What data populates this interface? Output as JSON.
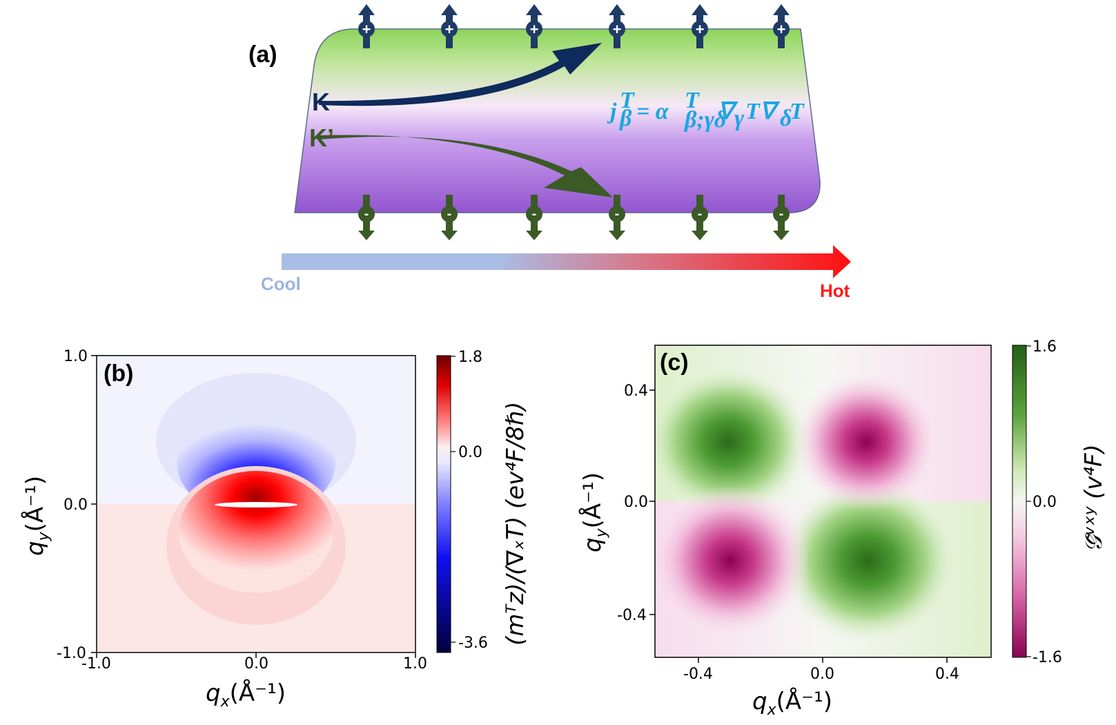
{
  "figure": {
    "panel_a": {
      "label": "(a)",
      "valley_k": "K",
      "valley_k_prime": "K’",
      "formula": "j",
      "formula_sub": "β",
      "formula_sup": "T",
      "formula_rhs": "= α",
      "formula_rhs_sub": "β;γδ",
      "formula_rhs_sup": "T",
      "formula_tail": "∇",
      "formula_g": "γ",
      "formula_T": "T∇",
      "formula_d": "δ",
      "formula_T2": "T",
      "cool_label": "Cool",
      "hot_label": "Hot",
      "charges_top": [
        "+",
        "+",
        "+",
        "+",
        "+",
        "+"
      ],
      "charges_bottom": [
        "-",
        "-",
        "-",
        "-",
        "-",
        "-"
      ],
      "colors": {
        "cool": "#9db4e0",
        "hot": "#ff1a1a",
        "k_arrow": "#0f2a5c",
        "kp_arrow": "#3b5a26",
        "formula": "#1aa7e0"
      }
    },
    "panel_b": {
      "label": "(b)",
      "x_ticks": [
        "-1.0",
        "0.0",
        "1.0"
      ],
      "y_ticks": [
        "1.0",
        "0.0",
        "-1.0"
      ],
      "x_title": "q",
      "x_title_sub": "x",
      "x_title_unit": "(Å⁻¹)",
      "y_title": "q",
      "y_title_sub": "y",
      "y_title_unit": "(Å⁻¹)",
      "colorbar_ticks": [
        "1.8",
        "0.0",
        "-3.6"
      ],
      "colorbar_title": "(m",
      "colorbar_title_full": "(mᵀz)/(∇ₓT)  (ev⁴F/8ℏ)",
      "colorscale": {
        "max_color": "#7a0000",
        "mid_color": "#f5f5ff",
        "min_color": "#00004d"
      }
    },
    "panel_c": {
      "label": "(c)",
      "x_ticks": [
        "-0.4",
        "0.0",
        "0.4"
      ],
      "y_ticks": [
        "0.4",
        "0.0",
        "-0.4"
      ],
      "x_title_unit": "(Å⁻¹)",
      "y_title_unit": "(Å⁻¹)",
      "colorbar_ticks": [
        "1.6",
        "0.0",
        "-1.6"
      ],
      "colorbar_title_full": "𝒢̃ᵛˣʸ (v⁴F)",
      "colorscale": {
        "max_color": "#2e6b1a",
        "mid_color": "#f7f7f7",
        "min_color": "#8e0152"
      }
    }
  }
}
